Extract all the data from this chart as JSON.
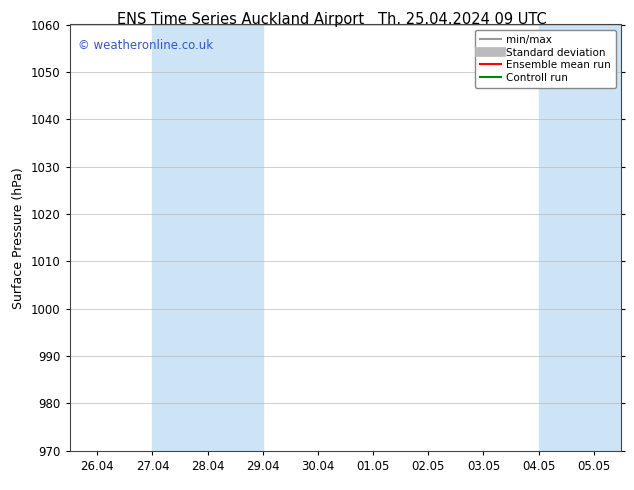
{
  "title_left": "ENS Time Series Auckland Airport",
  "title_right": "Th. 25.04.2024 09 UTC",
  "ylabel": "Surface Pressure (hPa)",
  "ylim": [
    970,
    1060
  ],
  "yticks": [
    970,
    980,
    990,
    1000,
    1010,
    1020,
    1030,
    1040,
    1050,
    1060
  ],
  "xtick_labels": [
    "26.04",
    "27.04",
    "28.04",
    "29.04",
    "30.04",
    "01.05",
    "02.05",
    "03.05",
    "04.05",
    "05.05"
  ],
  "shaded_regions": [
    {
      "xmin": 1,
      "xmax": 3,
      "color": "#cce4f5"
    },
    {
      "xmin": 8,
      "xmax": 10,
      "color": "#cce4f5"
    }
  ],
  "copyright_text": "© weatheronline.co.uk",
  "copyright_color": "#3355cc",
  "legend_items": [
    {
      "label": "min/max",
      "color": "#999999",
      "lw": 1.5
    },
    {
      "label": "Standard deviation",
      "color": "#bbbbbb",
      "lw": 7
    },
    {
      "label": "Ensemble mean run",
      "color": "#ff0000",
      "lw": 1.5
    },
    {
      "label": "Controll run",
      "color": "#008800",
      "lw": 1.5
    }
  ],
  "bg_color": "#ffffff",
  "grid_color": "#bbbbbb",
  "title_fontsize": 10.5,
  "ylabel_fontsize": 9,
  "tick_fontsize": 8.5,
  "legend_fontsize": 7.5
}
